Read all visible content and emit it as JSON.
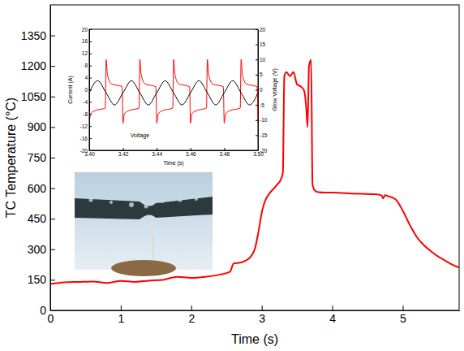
{
  "chart_data": [
    {
      "type": "line",
      "x_label": "Time (s)",
      "y_label": "TC Temperature (°C)",
      "xlim": [
        0,
        5.8
      ],
      "ylim": [
        0,
        1500
      ],
      "xticks": [
        0,
        1,
        2,
        3,
        4,
        5
      ],
      "yticks": [
        0,
        150,
        300,
        450,
        600,
        750,
        900,
        1050,
        1200,
        1350
      ],
      "color": "#ff0000",
      "x": [
        0,
        0.2,
        0.4,
        0.6,
        0.8,
        1.0,
        1.2,
        1.4,
        1.6,
        1.8,
        2.0,
        2.2,
        2.4,
        2.55,
        2.6,
        2.7,
        2.8,
        2.9,
        2.95,
        3.0,
        3.05,
        3.1,
        3.2,
        3.28,
        3.3,
        3.32,
        3.35,
        3.4,
        3.45,
        3.5,
        3.55,
        3.6,
        3.63,
        3.65,
        3.67,
        3.7,
        3.72,
        3.75,
        3.8,
        3.9,
        4.0,
        4.2,
        4.4,
        4.6,
        4.7,
        4.72,
        4.75,
        4.8,
        4.9,
        5.0,
        5.1,
        5.2,
        5.3,
        5.4,
        5.5,
        5.6,
        5.7,
        5.8
      ],
      "values": [
        130,
        138,
        140,
        142,
        135,
        145,
        140,
        146,
        150,
        165,
        160,
        165,
        175,
        190,
        230,
        235,
        250,
        300,
        380,
        480,
        540,
        570,
        610,
        650,
        680,
        1150,
        1170,
        1150,
        1170,
        1110,
        1100,
        1080,
        1000,
        900,
        1200,
        1230,
        620,
        590,
        580,
        578,
        578,
        575,
        572,
        570,
        565,
        550,
        565,
        560,
        545,
        490,
        420,
        360,
        320,
        290,
        265,
        245,
        225,
        210
      ]
    },
    {
      "type": "line",
      "x_label": "Time (s)",
      "y_label": "Current (A)",
      "y2_label": "Glow Voltage (V)",
      "annotation": "Voltage",
      "xlim": [
        3.4,
        3.5
      ],
      "ylim": [
        -20,
        20
      ],
      "y2lim": [
        -20,
        20
      ],
      "xticks": [
        {
          "value": 3.4,
          "label": "3.40"
        },
        {
          "value": 3.42,
          "label": "3.42"
        },
        {
          "value": 3.44,
          "label": "3.44"
        },
        {
          "value": 3.46,
          "label": "3.46"
        },
        {
          "value": 3.48,
          "label": "3.48"
        },
        {
          "value": 3.5,
          "label": "3.50"
        }
      ],
      "yticks": [
        -20,
        -16,
        -12,
        -8,
        -4,
        0,
        4,
        8,
        12,
        16,
        20
      ],
      "y2ticks": [
        -20,
        -15,
        -10,
        -5,
        0,
        5,
        10,
        15,
        20
      ],
      "series": [
        {
          "color": "#ff0000",
          "x": [
            3.4,
            3.4008,
            3.403,
            3.4095,
            3.41,
            3.4108,
            3.413,
            3.4195,
            3.42,
            3.4208,
            3.423,
            3.4295,
            3.43,
            3.4308,
            3.433,
            3.4395,
            3.44,
            3.4408,
            3.443,
            3.4495,
            3.45,
            3.4508,
            3.453,
            3.4595,
            3.46,
            3.4608,
            3.463,
            3.4695,
            3.47,
            3.4708,
            3.473,
            3.4795,
            3.48,
            3.4808,
            3.483,
            3.4895,
            3.49,
            3.4908,
            3.493,
            3.4995,
            3.5
          ],
          "values": [
            -11,
            -8,
            -7,
            -6,
            10,
            5,
            2,
            1,
            -11,
            -8,
            -7,
            -6,
            10,
            5,
            2,
            1,
            -11,
            -8,
            -7,
            -6,
            10,
            5,
            2,
            1,
            -11,
            -8,
            -7,
            -6,
            10,
            5,
            2,
            1,
            -11,
            -8,
            -7,
            -6,
            10,
            5,
            2,
            1,
            -11
          ]
        },
        {
          "color": "#000000",
          "axis": "y2",
          "x": [
            3.4,
            3.405,
            3.41,
            3.415,
            3.42,
            3.425,
            3.43,
            3.435,
            3.44,
            3.445,
            3.45,
            3.455,
            3.46,
            3.465,
            3.47,
            3.475,
            3.48,
            3.485,
            3.49,
            3.495,
            3.5
          ],
          "values": [
            -1,
            3,
            -1,
            -5,
            -1,
            3,
            -1,
            -5,
            -1,
            3,
            -1,
            -5,
            -1,
            3,
            -1,
            -5,
            -1,
            3,
            -1,
            -5,
            -1
          ]
        }
      ]
    }
  ]
}
